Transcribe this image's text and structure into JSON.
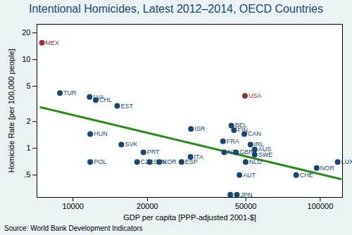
{
  "chart_data": {
    "type": "scatter",
    "title": "Intentional Homicides, Latest 2012–2014, OECD Countries",
    "x_label": "GDP per capita [PPP-adjusted 2001-$]",
    "y_label": "Homicide Rate [per 100,000 people]",
    "source": "Source: World Bank Development Indicators",
    "log": true,
    "grid": false,
    "marker": "circle",
    "labels": [
      "MEX",
      "TUR",
      "LVA",
      "CHL",
      "EST",
      "HUN",
      "SVK",
      "PRT",
      "POL",
      "CZE",
      "SVN",
      "KOR",
      "ESP",
      "ITA",
      "ISR",
      "NZL",
      "GBR",
      "FRA",
      "BEL",
      "FIN",
      "CAN",
      "IRL",
      "AUS",
      "SWE",
      "NLD",
      "AUT",
      "USA",
      "JPN",
      null,
      "CHE",
      "NOR",
      "LUX"
    ],
    "x": [
      7490,
      8850,
      11670,
      12360,
      15090,
      11740,
      15690,
      19270,
      11740,
      18170,
      20420,
      22330,
      27470,
      29870,
      30000,
      40900,
      45600,
      40430,
      43700,
      44800,
      49300,
      52200,
      54300,
      54300,
      49900,
      47100,
      49600,
      46000,
      43300,
      79900,
      96700,
      117600
    ],
    "values": [
      15.5,
      4.2,
      3.8,
      3.5,
      3.0,
      1.45,
      1.1,
      0.9,
      0.7,
      0.7,
      0.7,
      0.7,
      0.7,
      0.8,
      1.65,
      0.9,
      0.9,
      1.2,
      1.8,
      1.6,
      1.45,
      1.1,
      0.97,
      0.85,
      0.7,
      0.5,
      3.9,
      0.3,
      0.3,
      0.5,
      0.6,
      0.7
    ],
    "colors": [
      "#90353b",
      "#1a476f",
      "#1a476f",
      "#1a476f",
      "#1a476f",
      "#1a476f",
      "#1a476f",
      "#1a476f",
      "#1a476f",
      "#1a476f",
      "#1a476f",
      "#1a476f",
      "#1a476f",
      "#1a476f",
      "#1a476f",
      "#1a476f",
      "#1a476f",
      "#1a476f",
      "#1a476f",
      "#1a476f",
      "#1a476f",
      "#1a476f",
      "#1a476f",
      "#1a476f",
      "#1a476f",
      "#1a476f",
      "#90353b",
      "#1a476f",
      "#1a476f",
      "#1a476f",
      "#1a476f",
      "#1a476f"
    ],
    "fit": {
      "x": [
        7400,
        121000
      ],
      "y": [
        2.9,
        0.45
      ],
      "color": "#2e8b22"
    },
    "xlim": [
      7150,
      123000
    ],
    "xticks": [
      10000,
      20000,
      50000,
      100000
    ],
    "ylim": [
      0.28,
      25
    ],
    "yticks": [
      {
        "value": 0.5,
        "label": ".5"
      },
      1,
      2,
      5,
      10,
      20
    ]
  }
}
